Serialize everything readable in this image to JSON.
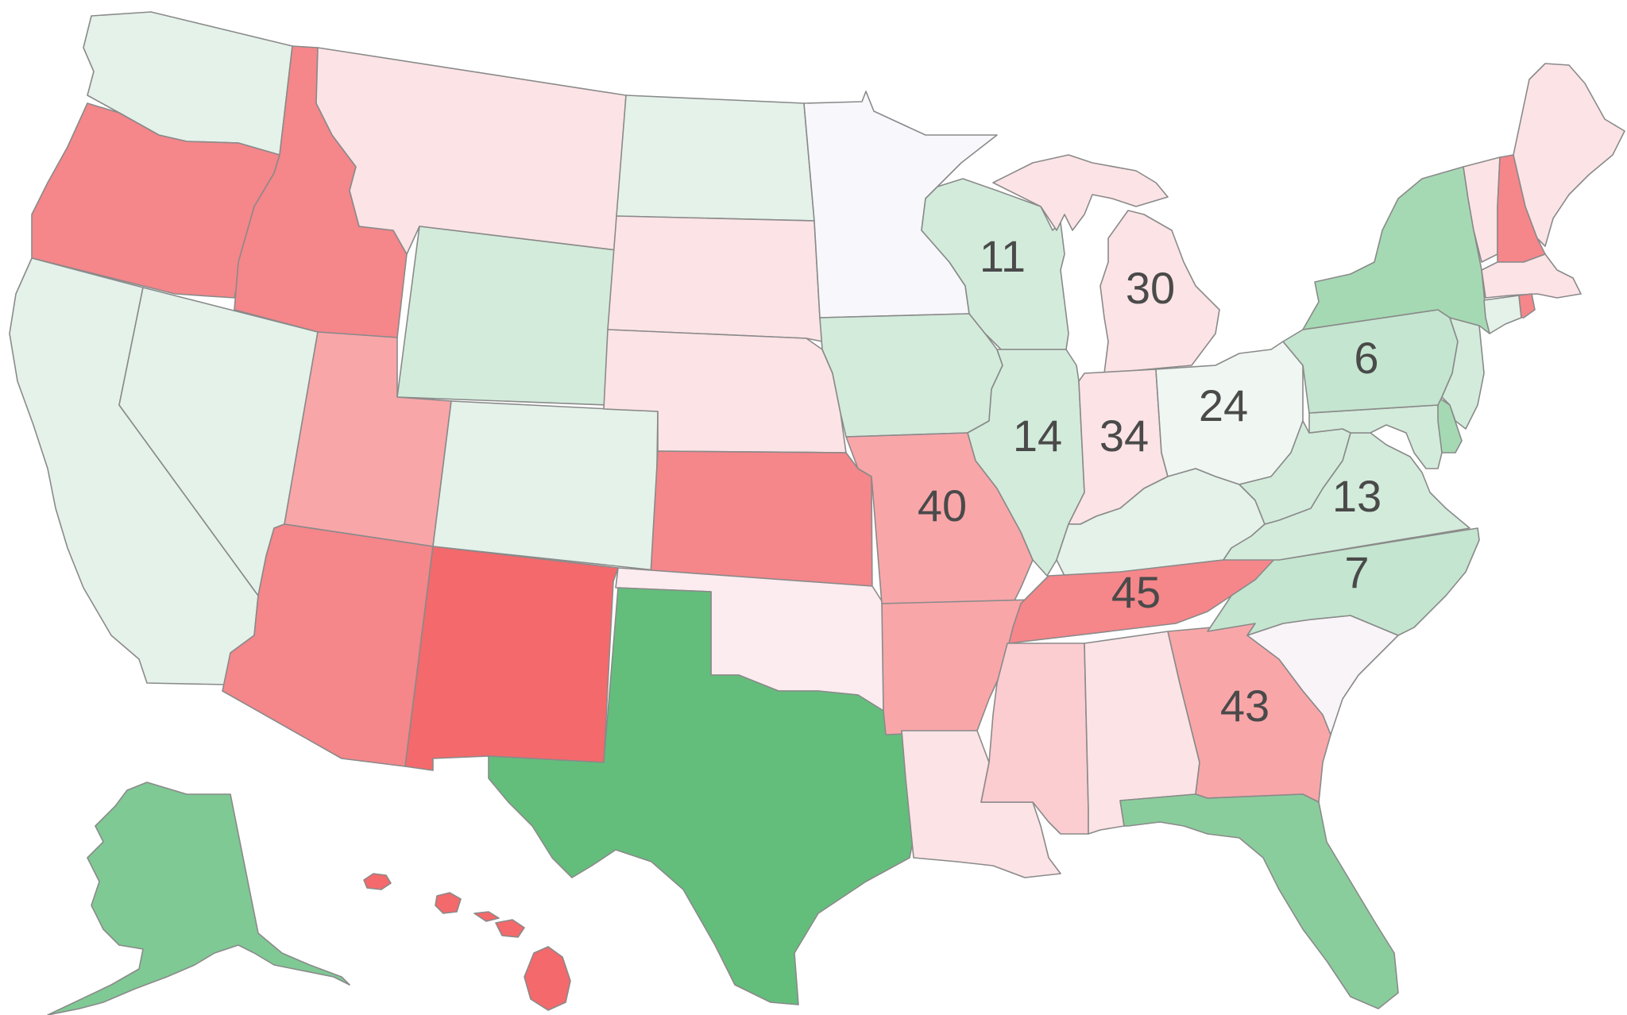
{
  "map": {
    "colors": {
      "red_strong": "#F4696B",
      "red_high": "#F5868A",
      "red_mid": "#F9A6A9",
      "red_low": "#FBCCD0",
      "red_faint": "#FCE3E6",
      "neutral": "#F8F8FC",
      "green_faint": "#E4F2EA",
      "green_low": "#D3EBDB",
      "green_mid": "#A5D9B3",
      "green_high": "#7FC994",
      "green_strong": "#63BE7B"
    },
    "states": [
      {
        "id": "WA",
        "color": "#E4F2EA"
      },
      {
        "id": "OR",
        "color": "#F5868A"
      },
      {
        "id": "CA",
        "color": "#E4F2EA"
      },
      {
        "id": "NV",
        "color": "#E4F2EA"
      },
      {
        "id": "ID",
        "color": "#F5868A"
      },
      {
        "id": "MT",
        "color": "#FCE3E6"
      },
      {
        "id": "WY",
        "color": "#D3EBDB"
      },
      {
        "id": "UT",
        "color": "#F9A6A9"
      },
      {
        "id": "AZ",
        "color": "#F5868A"
      },
      {
        "id": "CO",
        "color": "#E4F2EA"
      },
      {
        "id": "NM",
        "color": "#F4696B"
      },
      {
        "id": "ND",
        "color": "#E4F2EA"
      },
      {
        "id": "SD",
        "color": "#FCE3E6"
      },
      {
        "id": "NE",
        "color": "#FCE3E6"
      },
      {
        "id": "KS",
        "color": "#F5868A"
      },
      {
        "id": "OK",
        "color": "#FCECEF"
      },
      {
        "id": "TX",
        "color": "#63BE7B"
      },
      {
        "id": "MN",
        "color": "#F8F8FC"
      },
      {
        "id": "IA",
        "color": "#D3EBDB"
      },
      {
        "id": "MO",
        "color": "#F9A6A9"
      },
      {
        "id": "AR",
        "color": "#F9A6A9"
      },
      {
        "id": "LA",
        "color": "#FCE3E6"
      },
      {
        "id": "WI",
        "color": "#D3EBDB"
      },
      {
        "id": "IL",
        "color": "#D3EBDB"
      },
      {
        "id": "MI",
        "color": "#FCE3E6"
      },
      {
        "id": "IN",
        "color": "#FCE3E6"
      },
      {
        "id": "OH",
        "color": "#F0F7F3"
      },
      {
        "id": "KY",
        "color": "#E4F2EA"
      },
      {
        "id": "TN",
        "color": "#F5868A"
      },
      {
        "id": "MS",
        "color": "#FBCCD0"
      },
      {
        "id": "AL",
        "color": "#FCE3E6"
      },
      {
        "id": "GA",
        "color": "#F9A6A9"
      },
      {
        "id": "FL",
        "color": "#8ACD9C"
      },
      {
        "id": "SC",
        "color": "#F8F4F8"
      },
      {
        "id": "NC",
        "color": "#C4E5CF"
      },
      {
        "id": "VA",
        "color": "#D3EBDB"
      },
      {
        "id": "WV",
        "color": "#D3EBDB"
      },
      {
        "id": "PA",
        "color": "#C4E5CF"
      },
      {
        "id": "NY",
        "color": "#A5D9B3"
      },
      {
        "id": "VT",
        "color": "#FCE3E6"
      },
      {
        "id": "NH",
        "color": "#F5868A"
      },
      {
        "id": "ME",
        "color": "#FCE3E6"
      },
      {
        "id": "MA",
        "color": "#FCE3E6"
      },
      {
        "id": "CT",
        "color": "#E4F2EA"
      },
      {
        "id": "RI",
        "color": "#F5868A"
      },
      {
        "id": "NJ",
        "color": "#D3EBDB"
      },
      {
        "id": "DE",
        "color": "#A5D9B3"
      },
      {
        "id": "MD",
        "color": "#D3EBDB"
      },
      {
        "id": "AK",
        "color": "#7FC994"
      },
      {
        "id": "HI",
        "color": "#F4696B"
      }
    ],
    "labels": [
      {
        "state": "WI",
        "text": "11"
      },
      {
        "state": "MI",
        "text": "30"
      },
      {
        "state": "PA",
        "text": "6"
      },
      {
        "state": "OH",
        "text": "24"
      },
      {
        "state": "IL",
        "text": "14"
      },
      {
        "state": "IN",
        "text": "34"
      },
      {
        "state": "MO",
        "text": "40"
      },
      {
        "state": "VA",
        "text": "13"
      },
      {
        "state": "NC",
        "text": "7"
      },
      {
        "state": "TN",
        "text": "45"
      },
      {
        "state": "GA",
        "text": "43"
      }
    ]
  }
}
